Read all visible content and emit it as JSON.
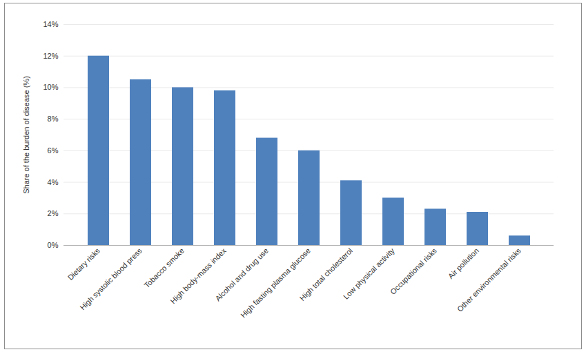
{
  "chart_data": {
    "type": "bar",
    "y_label": "Share of the burden of disease (%)",
    "categories": [
      "Dietary risks",
      "High systolic blood press",
      "Tobacco smoke",
      "High body-mass index",
      "Alcohol and drug use",
      "High fasting plasma glucose",
      "High total cholesterol",
      "Low physical activity",
      "Occupational risks",
      "Air pollution",
      "Other environmental risks"
    ],
    "values": [
      12.0,
      10.5,
      10.0,
      9.8,
      6.8,
      6.0,
      4.1,
      3.0,
      2.3,
      2.1,
      0.6
    ],
    "color": "#4f81bd",
    "ylim": [
      0,
      14
    ],
    "yticks": [
      {
        "value": 0,
        "label": "0%"
      },
      {
        "value": 2,
        "label": "2%"
      },
      {
        "value": 4,
        "label": "4%"
      },
      {
        "value": 6,
        "label": "6%"
      },
      {
        "value": 8,
        "label": "8%"
      },
      {
        "value": 10,
        "label": "10%"
      },
      {
        "value": 12,
        "label": "12%"
      },
      {
        "value": 14,
        "label": "14%"
      }
    ],
    "grid": true
  }
}
